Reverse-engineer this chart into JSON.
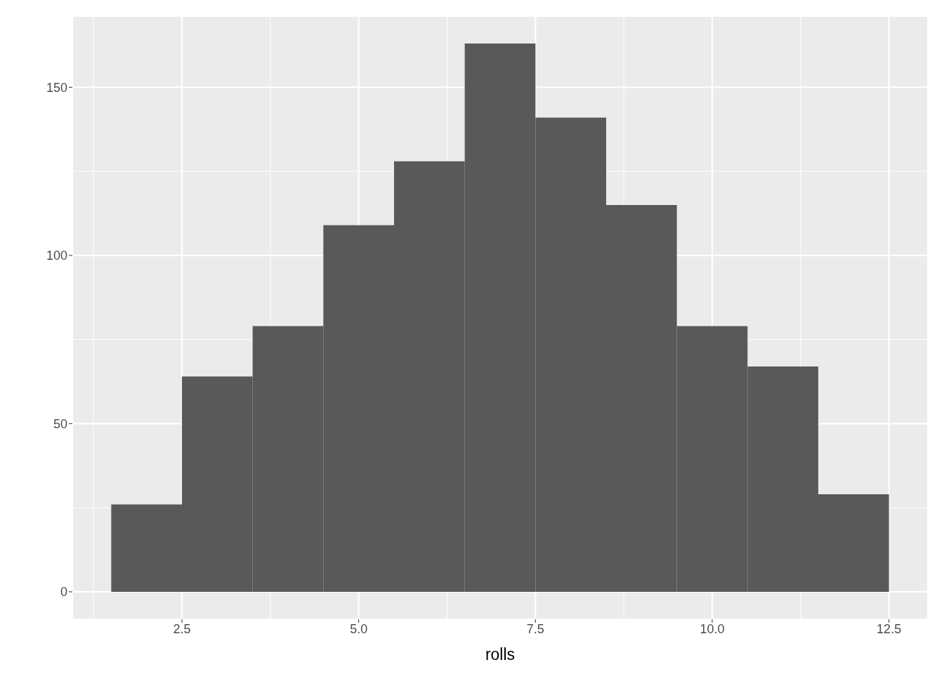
{
  "chart_data": {
    "type": "histogram",
    "xlabel": "rolls",
    "bins": [
      1.5,
      2.5,
      3.5,
      4.5,
      5.5,
      6.5,
      7.5,
      8.5,
      9.5,
      10.5,
      11.5,
      12.5
    ],
    "values": [
      26,
      64,
      79,
      109,
      128,
      163,
      141,
      115,
      79,
      67,
      29
    ],
    "color": "#595959",
    "xlim": [
      0.95,
      13.05
    ],
    "xticks": [
      2.5,
      {
        "value": 5,
        "label": "5.0"
      },
      7.5,
      {
        "value": 10,
        "label": "10.0"
      },
      12.5
    ],
    "ylim": [
      -8.15,
      171.15
    ],
    "yticks": [
      0,
      50,
      100,
      150
    ],
    "grid": true
  }
}
